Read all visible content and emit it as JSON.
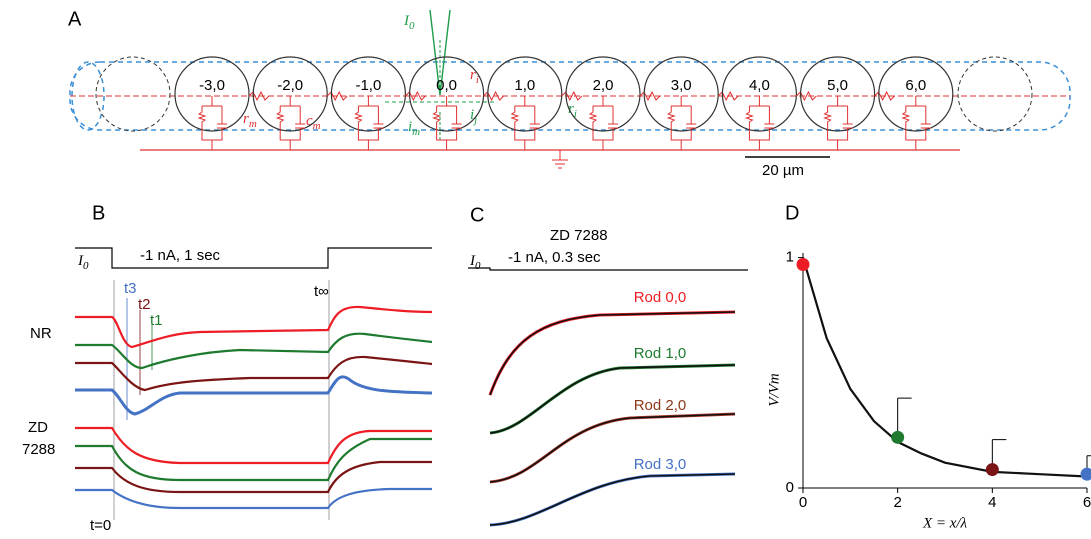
{
  "panel_a": {
    "letter": "A",
    "cells": [
      "-3,0",
      "-2,0",
      "-1,0",
      "0,0",
      "1,0",
      "2,0",
      "3,0",
      "4,0",
      "5,0",
      "6,0"
    ],
    "source": {
      "main": "I",
      "sub": "0"
    },
    "ri_top": {
      "main": "r",
      "sub": "i"
    },
    "rm": {
      "main": "r",
      "sub": "m"
    },
    "cm": {
      "main": "c",
      "sub": "m"
    },
    "im": {
      "main": "i",
      "sub": "m"
    },
    "ij": {
      "main": "i",
      "sub": "j"
    },
    "ri_bottom": {
      "main": "r",
      "sub": "i"
    },
    "scale_bar": "20 µm"
  },
  "panel_b": {
    "letter": "B",
    "stim": {
      "main": "I",
      "sub": "0"
    },
    "stim_label": "-1 nA, 1 sec",
    "t3": "t3",
    "t2": "t2",
    "t1": "t1",
    "tinf": "t∞",
    "t0": "t=0",
    "row1": "NR",
    "row2_line1": "ZD",
    "row2_line2": "7288"
  },
  "panel_c": {
    "letter": "C",
    "title": "ZD 7288",
    "stim": {
      "main": "I",
      "sub": "0"
    },
    "stim_label": "-1 nA, 0.3 sec",
    "rods": [
      {
        "name": "Rod 0,0",
        "color": "#ee1c24"
      },
      {
        "name": "Rod 1,0",
        "color": "#1e7a2e"
      },
      {
        "name": "Rod 2,0",
        "color": "#8b3a1a"
      },
      {
        "name": "Rod 3,0",
        "color": "#4472c4"
      }
    ]
  },
  "chart_data": {
    "type": "scatter",
    "letter": "D",
    "x_label": "X = x/λ",
    "y_label": "V/Vm",
    "xlim": [
      0,
      6
    ],
    "ylim": [
      0,
      1.02
    ],
    "xticks": [
      0,
      2,
      4,
      6
    ],
    "yticks": [
      0,
      1
    ],
    "series": [
      {
        "x": [
          0,
          2,
          4,
          6
        ],
        "values": [
          0.97,
          0.22,
          0.08,
          0.06
        ],
        "errors": [
          null,
          0.17,
          0.13,
          0.08
        ],
        "colors": [
          "#ee1c24",
          "#1e7a2e",
          "#7b1414",
          "#4472c4"
        ]
      },
      {
        "type": "line",
        "color": "#111111",
        "x": [
          0,
          0.5,
          1,
          1.5,
          2,
          2.5,
          3,
          4,
          5,
          6
        ],
        "values": [
          1,
          0.65,
          0.43,
          0.29,
          0.2,
          0.15,
          0.11,
          0.07,
          0.06,
          0.05
        ]
      }
    ]
  }
}
